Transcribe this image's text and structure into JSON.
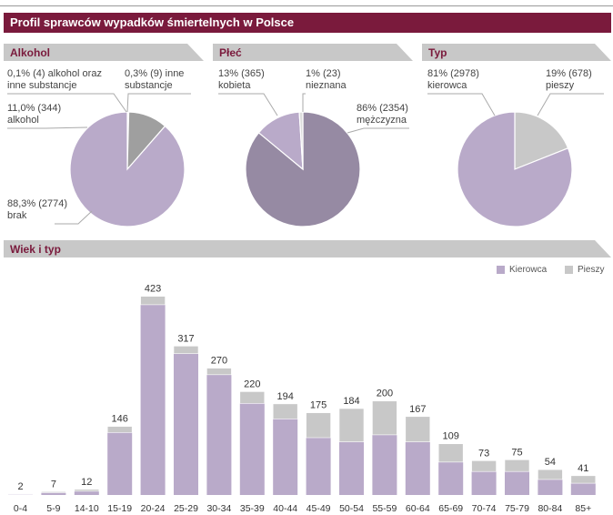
{
  "title": "Profil sprawców wypadków śmiertelnych w Polsce",
  "pies": [
    {
      "heading": "Alkohol",
      "slices": [
        {
          "value": 0.1,
          "color": "#5c5c5c",
          "label1": "0,1% (4) alkohol oraz",
          "label2": "inne substancje"
        },
        {
          "value": 0.3,
          "color": "#c8c8c8",
          "label1": "0,3% (9) inne",
          "label2": "substancje"
        },
        {
          "value": 11.0,
          "color": "#9f9f9f",
          "label1": "11,0% (344)",
          "label2": "alkohol"
        },
        {
          "value": 88.3,
          "color": "#b9aac9",
          "label1": "88,3% (2774)",
          "label2": "brak"
        }
      ]
    },
    {
      "heading": "Płeć",
      "slices": [
        {
          "value": 86,
          "color": "#968aa3",
          "label1": "86% (2354)",
          "label2": "mężczyzna"
        },
        {
          "value": 13,
          "color": "#b9aac9",
          "label1": "13% (365)",
          "label2": "kobieta"
        },
        {
          "value": 1,
          "color": "#dcdcdc",
          "label1": "1% (23)",
          "label2": "nieznana"
        }
      ]
    },
    {
      "heading": "Typ",
      "slices": [
        {
          "value": 19,
          "color": "#c8c8c8",
          "label1": "19% (678)",
          "label2": "pieszy"
        },
        {
          "value": 81,
          "color": "#b9aac9",
          "label1": "81% (2978)",
          "label2": "kierowca"
        }
      ]
    }
  ],
  "bar_heading": "Wiek i typ",
  "legend": [
    {
      "name": "Kierowca",
      "color": "#b9aac9"
    },
    {
      "name": "Pieszy",
      "color": "#c8c8c8"
    }
  ],
  "chart_data": {
    "type": "bar",
    "stacked": true,
    "categories": [
      "0-4",
      "5-9",
      "14-10",
      "15-19",
      "20-24",
      "25-29",
      "30-34",
      "35-39",
      "40-44",
      "45-49",
      "50-54",
      "55-59",
      "60-64",
      "65-69",
      "70-74",
      "75-79",
      "80-84",
      "85+"
    ],
    "totals": [
      2,
      7,
      12,
      146,
      423,
      317,
      270,
      220,
      194,
      175,
      184,
      200,
      167,
      109,
      73,
      75,
      54,
      41
    ],
    "series": [
      {
        "name": "Kierowca",
        "values": [
          1,
          5,
          8,
          133,
          405,
          301,
          256,
          195,
          162,
          122,
          113,
          128,
          113,
          70,
          50,
          50,
          33,
          25
        ]
      },
      {
        "name": "Pieszy",
        "values": [
          1,
          2,
          4,
          13,
          18,
          16,
          14,
          25,
          32,
          53,
          71,
          72,
          54,
          39,
          23,
          25,
          21,
          16
        ]
      }
    ],
    "ylim": [
      0,
      430
    ]
  }
}
